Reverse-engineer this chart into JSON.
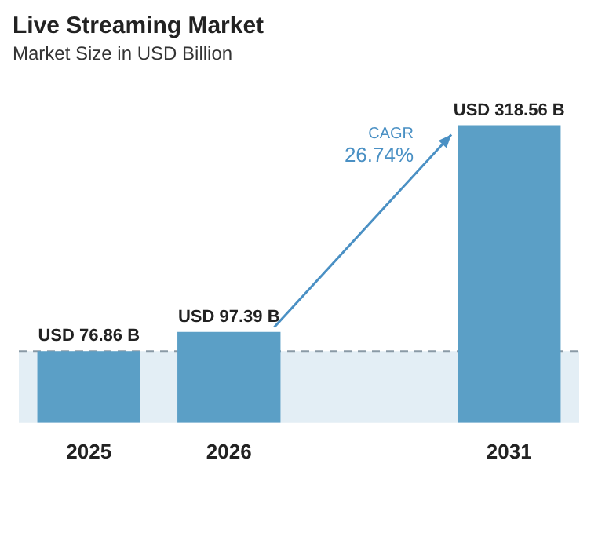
{
  "chart_data": {
    "type": "bar",
    "title": "Live Streaming Market",
    "subtitle": "Market Size in USD Billion",
    "categories": [
      "2025",
      "2026",
      null,
      "2031"
    ],
    "values": [
      76.86,
      97.39,
      null,
      318.56
    ],
    "value_labels": [
      "USD 76.86 B",
      "USD 97.39 B",
      null,
      "USD 318.56 B"
    ],
    "color": "#5b9fc6",
    "ref_lines": [
      {
        "axis": "y",
        "value": 76.86,
        "color": "#8a9aa6",
        "line_style": "dashed"
      }
    ],
    "bands": [
      {
        "axis": "y",
        "from": 0,
        "to": 76.86,
        "color": "#e3eef5"
      }
    ],
    "annotations": [
      "CAGR",
      "26.74%"
    ],
    "grid": false,
    "legend": false
  }
}
